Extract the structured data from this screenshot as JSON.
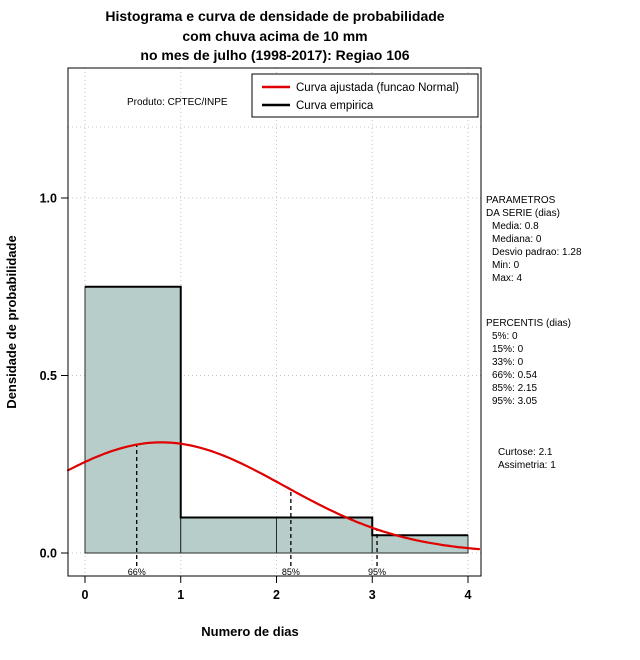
{
  "title": {
    "line1": "Histograma e curva de densidade de probabilidade",
    "line2": "com chuva acima de 10 mm",
    "line3": "no mes de julho (1998-2017): Regiao 106"
  },
  "watermark": "Produto: CPTEC/INPE",
  "legend": {
    "items": [
      {
        "label": "Curva ajustada (funcao Normal)",
        "color": "#e00000"
      },
      {
        "label": "Curva empirica",
        "color": "#000000"
      }
    ]
  },
  "chart_data": {
    "type": "bar",
    "subtype": "histogram-with-density-curve",
    "xlabel": "Numero de dias",
    "ylabel": "Densidade de probabilidade",
    "x_ticks": [
      0,
      1,
      2,
      3,
      4
    ],
    "y_ticks": [
      0,
      0.5,
      1
    ],
    "y_tick_labels": [
      "0.0",
      "0.5",
      "1.0"
    ],
    "xlim": [
      -0.18,
      4.13
    ],
    "ylim": [
      -0.05,
      1.37
    ],
    "grid": {
      "x_values": [
        0,
        1,
        2,
        3,
        4
      ],
      "y_values": [
        0,
        0.5,
        1,
        1.2
      ]
    },
    "histogram": {
      "breaks": [
        0,
        1,
        2,
        3,
        4
      ],
      "densities": [
        0.75,
        0.1,
        0.1,
        0.05
      ],
      "fill": "#b6cdc9",
      "stroke": "#2a2a2a"
    },
    "normal_curve": {
      "mean": 0.8,
      "sd": 1.28,
      "color": "#e00000"
    },
    "percentile_lines": [
      {
        "label": "66%",
        "x": 0.54
      },
      {
        "label": "85%",
        "x": 2.15
      },
      {
        "label": "95%",
        "x": 3.05
      }
    ]
  },
  "stats_panel": {
    "params_header1": "PARAMETROS",
    "params_header2": "DA SERIE (dias)",
    "params": [
      "Media: 0.8",
      "Mediana: 0",
      "Desvio padrao: 1.28",
      "Min: 0",
      "Max: 4"
    ],
    "percentis_header": "PERCENTIS (dias)",
    "percentis": [
      "5%: 0",
      "15%: 0",
      "33%: 0",
      "66%: 0.54",
      "85%: 2.15",
      "95%: 3.05"
    ],
    "moments": [
      "Curtose: 2.1",
      "Assimetria: 1"
    ]
  }
}
